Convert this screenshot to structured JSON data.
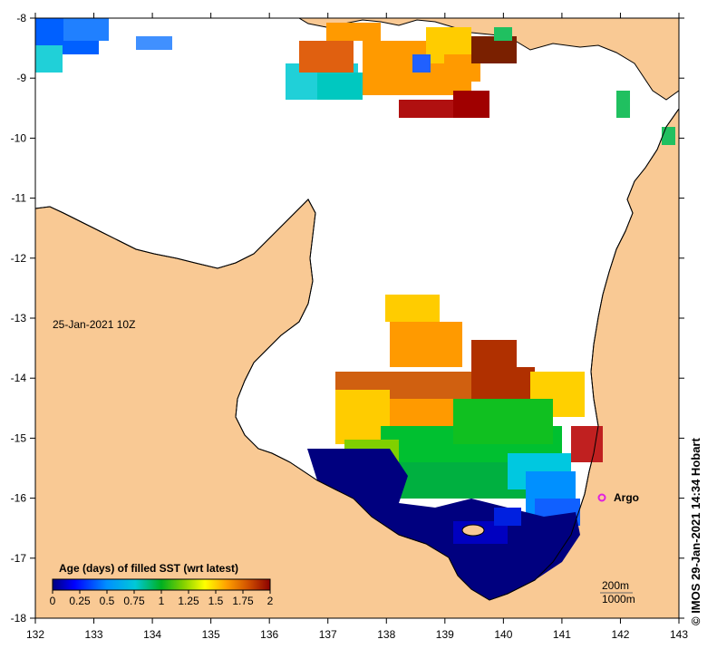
{
  "map": {
    "date_label": "25-Jan-2021 10Z",
    "longitude_ticks": [
      "132",
      "133",
      "134",
      "135",
      "136",
      "137",
      "138",
      "139",
      "140",
      "141",
      "142",
      "143"
    ],
    "latitude_ticks": [
      "-8",
      "-9",
      "-10",
      "-11",
      "-12",
      "-13",
      "-14",
      "-15",
      "-16",
      "-17",
      "-18"
    ],
    "argo_label": "Argo",
    "depth_200": "200m",
    "depth_1000": "1000m",
    "credit": "© IMOS 29-Jan-2021 14:34 Hobart",
    "colors": {
      "land": "#f9c994",
      "ocean_nodata": "#ffffff",
      "argo_marker": "#e020e0"
    }
  },
  "legend": {
    "title": "Age (days) of filled SST (wrt latest)",
    "tick_labels": [
      "0",
      "0.25",
      "0.5",
      "0.75",
      "1",
      "1.25",
      "1.5",
      "1.75",
      "2"
    ],
    "colors": [
      "#00007f",
      "#0000ff",
      "#0080ff",
      "#00c0e0",
      "#00b000",
      "#80d000",
      "#ffff00",
      "#ffa000",
      "#d06000",
      "#8b0000"
    ]
  }
}
